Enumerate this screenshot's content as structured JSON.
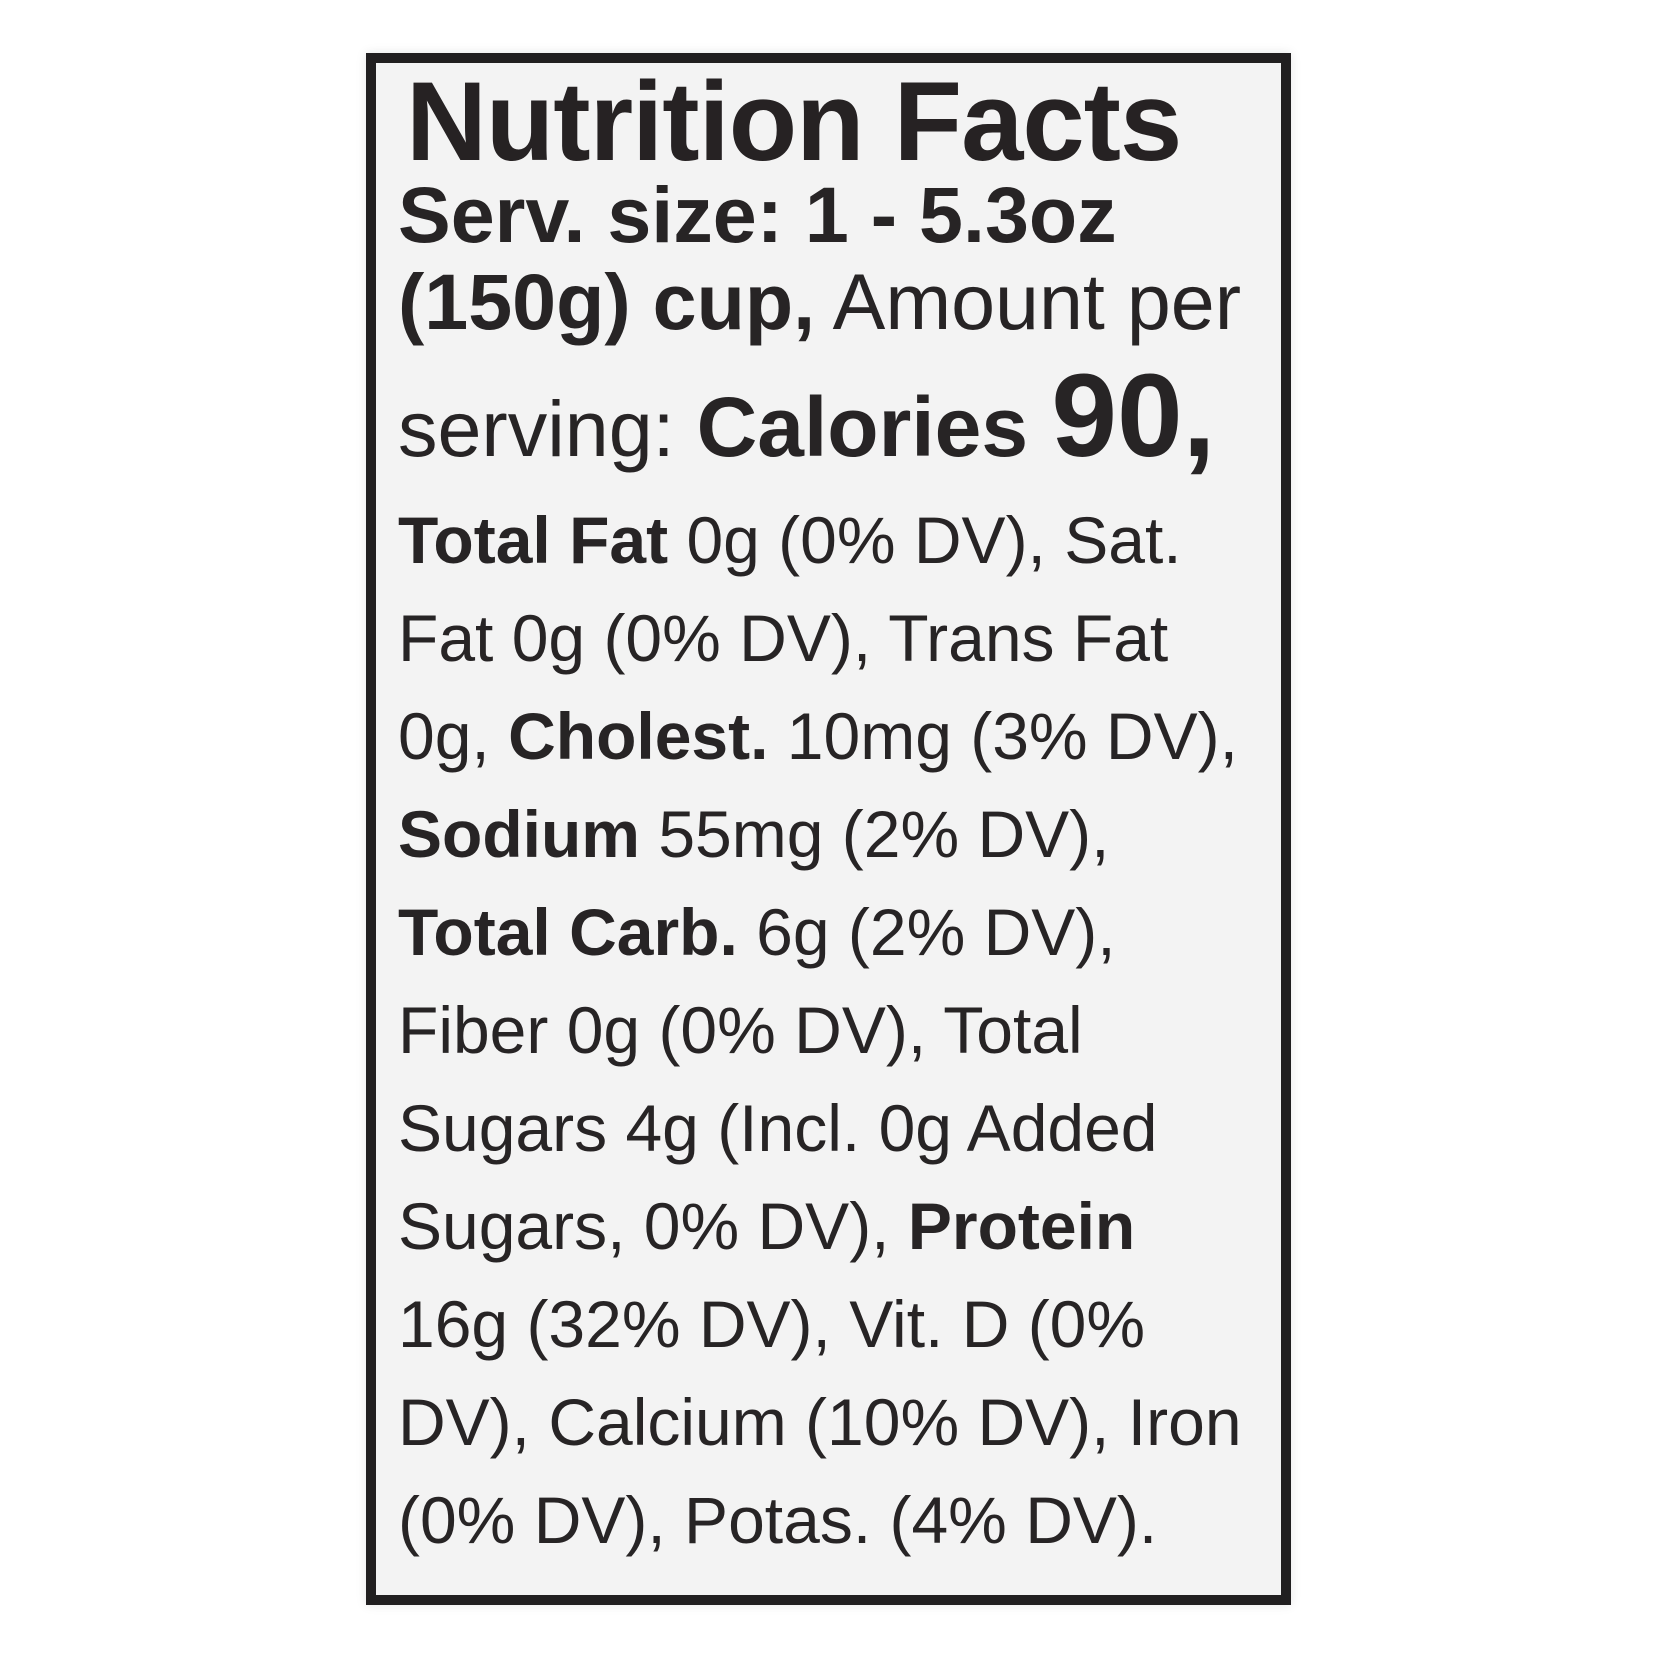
{
  "label": {
    "title": "Nutrition Facts",
    "serving_size": "1 - 5.3oz (150g) cup",
    "calories": "90",
    "colors": {
      "text": "#272425",
      "border": "#211f20",
      "panel_background": "#f3f3f3",
      "page_background": "#ffffff"
    },
    "lines": [
      {
        "size": "serv",
        "segments": [
          {
            "text": "Serv. size: 1 - 5.3oz",
            "bold": true
          }
        ]
      },
      {
        "size": "serv",
        "segments": [
          {
            "text": "(150g) cup,",
            "bold": true
          },
          {
            "text": " Amount per",
            "bold": false
          }
        ]
      },
      {
        "size": "cal",
        "segments": [
          {
            "text": "serving: ",
            "bold": false
          },
          {
            "text": "Calories ",
            "bold": true,
            "seg": "calories"
          },
          {
            "text": "90,",
            "bold": true,
            "seg": "big"
          }
        ]
      },
      {
        "size": "body",
        "segments": [
          {
            "text": "Total Fat ",
            "bold": true
          },
          {
            "text": "0g (0% DV), Sat.",
            "bold": false
          }
        ]
      },
      {
        "size": "body",
        "segments": [
          {
            "text": "Fat 0g (0% DV), Trans Fat",
            "bold": false
          }
        ]
      },
      {
        "size": "body",
        "segments": [
          {
            "text": "0g, ",
            "bold": false
          },
          {
            "text": "Cholest. ",
            "bold": true
          },
          {
            "text": "10mg (3% DV),",
            "bold": false
          }
        ]
      },
      {
        "size": "body",
        "segments": [
          {
            "text": "Sodium ",
            "bold": true
          },
          {
            "text": "55mg (2% DV),",
            "bold": false
          }
        ]
      },
      {
        "size": "body",
        "segments": [
          {
            "text": "Total Carb. ",
            "bold": true
          },
          {
            "text": "6g (2% DV),",
            "bold": false
          }
        ]
      },
      {
        "size": "body",
        "segments": [
          {
            "text": "Fiber 0g (0% DV), Total",
            "bold": false
          }
        ]
      },
      {
        "size": "body",
        "segments": [
          {
            "text": "Sugars 4g (Incl. 0g Added",
            "bold": false
          }
        ]
      },
      {
        "size": "body",
        "segments": [
          {
            "text": "Sugars, 0% DV), ",
            "bold": false
          },
          {
            "text": "Protein",
            "bold": true
          }
        ]
      },
      {
        "size": "body",
        "segments": [
          {
            "text": "16g (32% DV), Vit. D (0%",
            "bold": false
          }
        ]
      },
      {
        "size": "body",
        "segments": [
          {
            "text": "DV), Calcium (10% DV), Iron",
            "bold": false
          }
        ]
      },
      {
        "size": "body",
        "segments": [
          {
            "text": "(0% DV), Potas. (4% DV).",
            "bold": false
          }
        ]
      }
    ]
  }
}
